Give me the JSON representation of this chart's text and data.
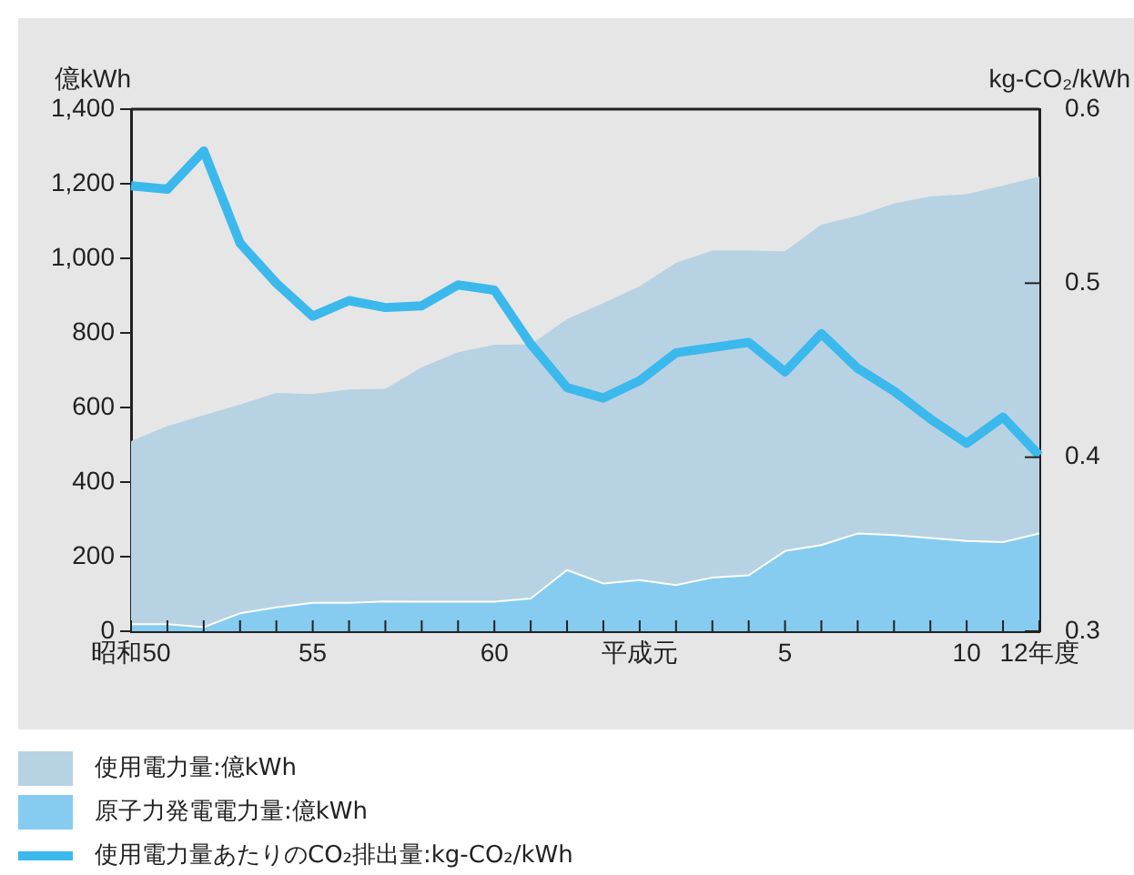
{
  "chart_data": {
    "type": "area",
    "ylabel": "億kWh",
    "y2label": "kg-CO₂/kWh",
    "categories": [
      "昭和50",
      null,
      null,
      null,
      null,
      "55",
      null,
      null,
      null,
      null,
      "60",
      null,
      null,
      null,
      "平成元",
      null,
      null,
      null,
      "5",
      null,
      null,
      null,
      null,
      "10",
      null,
      "12年度"
    ],
    "series": [
      {
        "name": "使用電力量:億kWh",
        "color": "#b7d2e2",
        "values": [
          510,
          550,
          579,
          608,
          639,
          636,
          648,
          650,
          708,
          748,
          768,
          769,
          837,
          880,
          925,
          988,
          1021,
          1021,
          1019,
          1090,
          1114,
          1147,
          1166,
          1172,
          1195,
          1219
        ]
      },
      {
        "name": "原子力発電電力量:億kWh",
        "color": "#86cbf0",
        "values": [
          19,
          19,
          11,
          48,
          64,
          76,
          76,
          80,
          79,
          79,
          79,
          88,
          164,
          128,
          137,
          124,
          144,
          150,
          215,
          231,
          262,
          258,
          250,
          242,
          239,
          262
        ]
      },
      {
        "name": "使用電力量あたりのCO₂排出量:kg-CO₂/kWh",
        "type": "line",
        "axis": "y2",
        "color": "#3bb8ec",
        "values": [
          0.556,
          0.554,
          0.576,
          0.523,
          0.5,
          0.481,
          0.49,
          0.486,
          0.487,
          0.499,
          0.496,
          0.465,
          0.44,
          0.434,
          0.444,
          0.46,
          0.463,
          0.466,
          0.449,
          0.471,
          0.451,
          0.438,
          0.422,
          0.408,
          0.423,
          0.401
        ]
      }
    ],
    "ylim": [
      0,
      1400
    ],
    "yticks": [
      {
        "value": 0,
        "label": "0"
      },
      {
        "value": 200,
        "label": "200"
      },
      {
        "value": 400,
        "label": "400"
      },
      {
        "value": 600,
        "label": "600"
      },
      {
        "value": 800,
        "label": "800"
      },
      {
        "value": 1000,
        "label": "1,000"
      },
      {
        "value": 1200,
        "label": "1,200"
      },
      {
        "value": 1400,
        "label": "1,400"
      }
    ],
    "y2lim": [
      0.3,
      0.6
    ],
    "y2ticks": [
      0.3,
      0.4,
      0.5,
      0.6
    ],
    "grid": false,
    "legend": "bottom",
    "marker": "none",
    "line_style": "solid"
  }
}
